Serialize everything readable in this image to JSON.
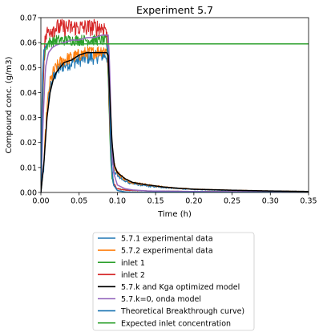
{
  "chart_data": {
    "type": "line",
    "title": "Experiment 5.7",
    "xlabel": "Time (h)",
    "ylabel": "Compound conc. (g/m3)",
    "xlim": [
      0,
      0.35
    ],
    "ylim": [
      0,
      0.07
    ],
    "xticks": [
      "0.00",
      "0.05",
      "0.10",
      "0.15",
      "0.20",
      "0.25",
      "0.30",
      "0.35"
    ],
    "yticks": [
      "0.00",
      "0.01",
      "0.02",
      "0.03",
      "0.04",
      "0.05",
      "0.06",
      "0.07"
    ],
    "grid": false,
    "legend_position": "below",
    "series": [
      {
        "name": "5.7.1 experimental data",
        "color": "#1f77b4",
        "noise": 0.0028,
        "x": [
          0.0,
          0.004,
          0.008,
          0.012,
          0.016,
          0.02,
          0.025,
          0.03,
          0.04,
          0.05,
          0.06,
          0.07,
          0.08,
          0.085,
          0.087,
          0.09,
          0.093,
          0.096,
          0.1,
          0.11,
          0.12,
          0.14,
          0.16,
          0.18,
          0.2,
          0.25,
          0.3,
          0.35
        ],
        "y": [
          0.0,
          0.01,
          0.032,
          0.042,
          0.046,
          0.048,
          0.05,
          0.051,
          0.052,
          0.053,
          0.054,
          0.054,
          0.055,
          0.055,
          0.054,
          0.03,
          0.015,
          0.009,
          0.007,
          0.0045,
          0.0035,
          0.0025,
          0.002,
          0.0015,
          0.0012,
          0.0008,
          0.0005,
          0.0004
        ]
      },
      {
        "name": "5.7.2 experimental data",
        "color": "#ff7f0e",
        "noise": 0.0026,
        "x": [
          0.0,
          0.004,
          0.008,
          0.012,
          0.016,
          0.02,
          0.025,
          0.03,
          0.04,
          0.05,
          0.06,
          0.07,
          0.08,
          0.085,
          0.087,
          0.09,
          0.093,
          0.096,
          0.1,
          0.11,
          0.12,
          0.14,
          0.16,
          0.18,
          0.2,
          0.25,
          0.3,
          0.35
        ],
        "y": [
          0.0,
          0.012,
          0.034,
          0.044,
          0.048,
          0.05,
          0.052,
          0.053,
          0.054,
          0.055,
          0.056,
          0.056,
          0.057,
          0.057,
          0.056,
          0.032,
          0.017,
          0.011,
          0.008,
          0.0052,
          0.004,
          0.003,
          0.0022,
          0.0017,
          0.0013,
          0.0009,
          0.0006,
          0.0004
        ]
      },
      {
        "name": "inlet 1",
        "color": "#2ca02c",
        "noise": 0.0022,
        "x": [
          0.0,
          0.002,
          0.004,
          0.006,
          0.01,
          0.02,
          0.04,
          0.06,
          0.08,
          0.085,
          0.087,
          0.089,
          0.091,
          0.093,
          0.095,
          0.1,
          0.11,
          0.12,
          0.14,
          0.2,
          0.35
        ],
        "y": [
          0.0,
          0.03,
          0.052,
          0.058,
          0.06,
          0.061,
          0.061,
          0.061,
          0.061,
          0.061,
          0.055,
          0.035,
          0.015,
          0.006,
          0.003,
          0.0015,
          0.001,
          0.0008,
          0.0006,
          0.0004,
          0.0003
        ]
      },
      {
        "name": "inlet 2",
        "color": "#d62728",
        "noise": 0.0035,
        "x": [
          0.0,
          0.002,
          0.004,
          0.006,
          0.01,
          0.02,
          0.03,
          0.04,
          0.05,
          0.06,
          0.07,
          0.08,
          0.085,
          0.087,
          0.089,
          0.091,
          0.093,
          0.096,
          0.1,
          0.11,
          0.12,
          0.14,
          0.2,
          0.35
        ],
        "y": [
          0.0,
          0.035,
          0.055,
          0.062,
          0.065,
          0.066,
          0.066,
          0.066,
          0.066,
          0.066,
          0.066,
          0.066,
          0.066,
          0.06,
          0.04,
          0.02,
          0.008,
          0.003,
          0.0015,
          0.001,
          0.0008,
          0.0006,
          0.0004,
          0.0003
        ]
      },
      {
        "name": "5.7.k and Kga optimized model",
        "color": "#000000",
        "noise": 0,
        "x": [
          0.0,
          0.004,
          0.008,
          0.012,
          0.016,
          0.02,
          0.025,
          0.03,
          0.04,
          0.05,
          0.06,
          0.07,
          0.08,
          0.086,
          0.088,
          0.09,
          0.093,
          0.096,
          0.1,
          0.11,
          0.12,
          0.14,
          0.16,
          0.18,
          0.2,
          0.25,
          0.3,
          0.35
        ],
        "y": [
          0.0,
          0.012,
          0.03,
          0.04,
          0.045,
          0.048,
          0.05,
          0.052,
          0.053,
          0.055,
          0.056,
          0.056,
          0.056,
          0.056,
          0.055,
          0.04,
          0.02,
          0.011,
          0.008,
          0.0055,
          0.004,
          0.003,
          0.0022,
          0.0017,
          0.0013,
          0.0009,
          0.0006,
          0.0004
        ]
      },
      {
        "name": "5.7.k=0, onda model",
        "color": "#9467bd",
        "noise": 0,
        "x": [
          0.0,
          0.003,
          0.006,
          0.01,
          0.015,
          0.02,
          0.03,
          0.04,
          0.05,
          0.06,
          0.07,
          0.08,
          0.085,
          0.088,
          0.09,
          0.092,
          0.095,
          0.1,
          0.11,
          0.12,
          0.14,
          0.2,
          0.35
        ],
        "y": [
          0.0,
          0.03,
          0.05,
          0.056,
          0.058,
          0.059,
          0.06,
          0.061,
          0.061,
          0.062,
          0.062,
          0.063,
          0.063,
          0.063,
          0.05,
          0.025,
          0.008,
          0.003,
          0.0015,
          0.001,
          0.0006,
          0.0004,
          0.0002
        ]
      },
      {
        "name": "Theoretical Breakthrough curve)",
        "color": "#1f77b4",
        "noise": 0,
        "x": [
          0.0,
          0.002,
          0.004,
          0.008,
          0.012,
          0.02,
          0.05,
          0.086,
          0.088,
          0.09,
          0.092,
          0.095,
          0.1,
          0.11,
          0.12,
          0.35
        ],
        "y": [
          0.0,
          0.045,
          0.057,
          0.0595,
          0.0595,
          0.0595,
          0.0595,
          0.0595,
          0.056,
          0.035,
          0.012,
          0.003,
          0.0008,
          0.0002,
          0.0001,
          0.0
        ]
      },
      {
        "name": "Expected inlet concentration",
        "color": "#2ca02c",
        "noise": 0,
        "x": [
          0.0,
          0.35
        ],
        "y": [
          0.0595,
          0.0595
        ]
      }
    ]
  }
}
